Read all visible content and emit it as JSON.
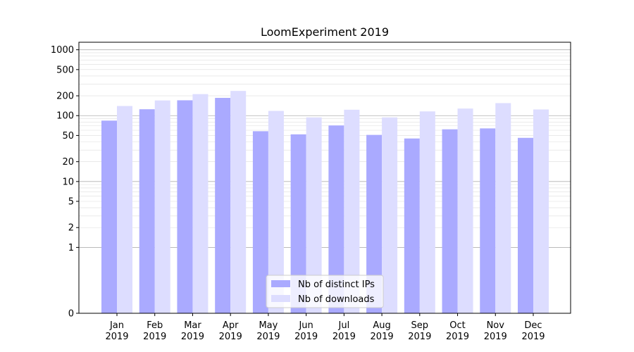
{
  "chart_data": {
    "type": "bar",
    "title": "LoomExperiment 2019",
    "xlabel": "",
    "ylabel": "",
    "y_scale": "symlog",
    "ylim": [
      0,
      1300
    ],
    "yticks": [
      0,
      1,
      2,
      5,
      10,
      20,
      50,
      100,
      200,
      500,
      1000
    ],
    "grid": "y major and minor",
    "legend_position": "lower center",
    "categories": [
      "Jan\n2019",
      "Feb\n2019",
      "Mar\n2019",
      "Apr\n2019",
      "May\n2019",
      "Jun\n2019",
      "Jul\n2019",
      "Aug\n2019",
      "Sep\n2019",
      "Oct\n2019",
      "Nov\n2019",
      "Dec\n2019"
    ],
    "series": [
      {
        "name": "Nb of distinct IPs",
        "color": "#aaaaff",
        "values": [
          84,
          125,
          171,
          186,
          58,
          52,
          71,
          51,
          45,
          62,
          64,
          46
        ]
      },
      {
        "name": "Nb of downloads",
        "color": "#ddddff",
        "values": [
          140,
          170,
          212,
          237,
          118,
          94,
          123,
          94,
          116,
          128,
          155,
          124
        ]
      }
    ]
  }
}
